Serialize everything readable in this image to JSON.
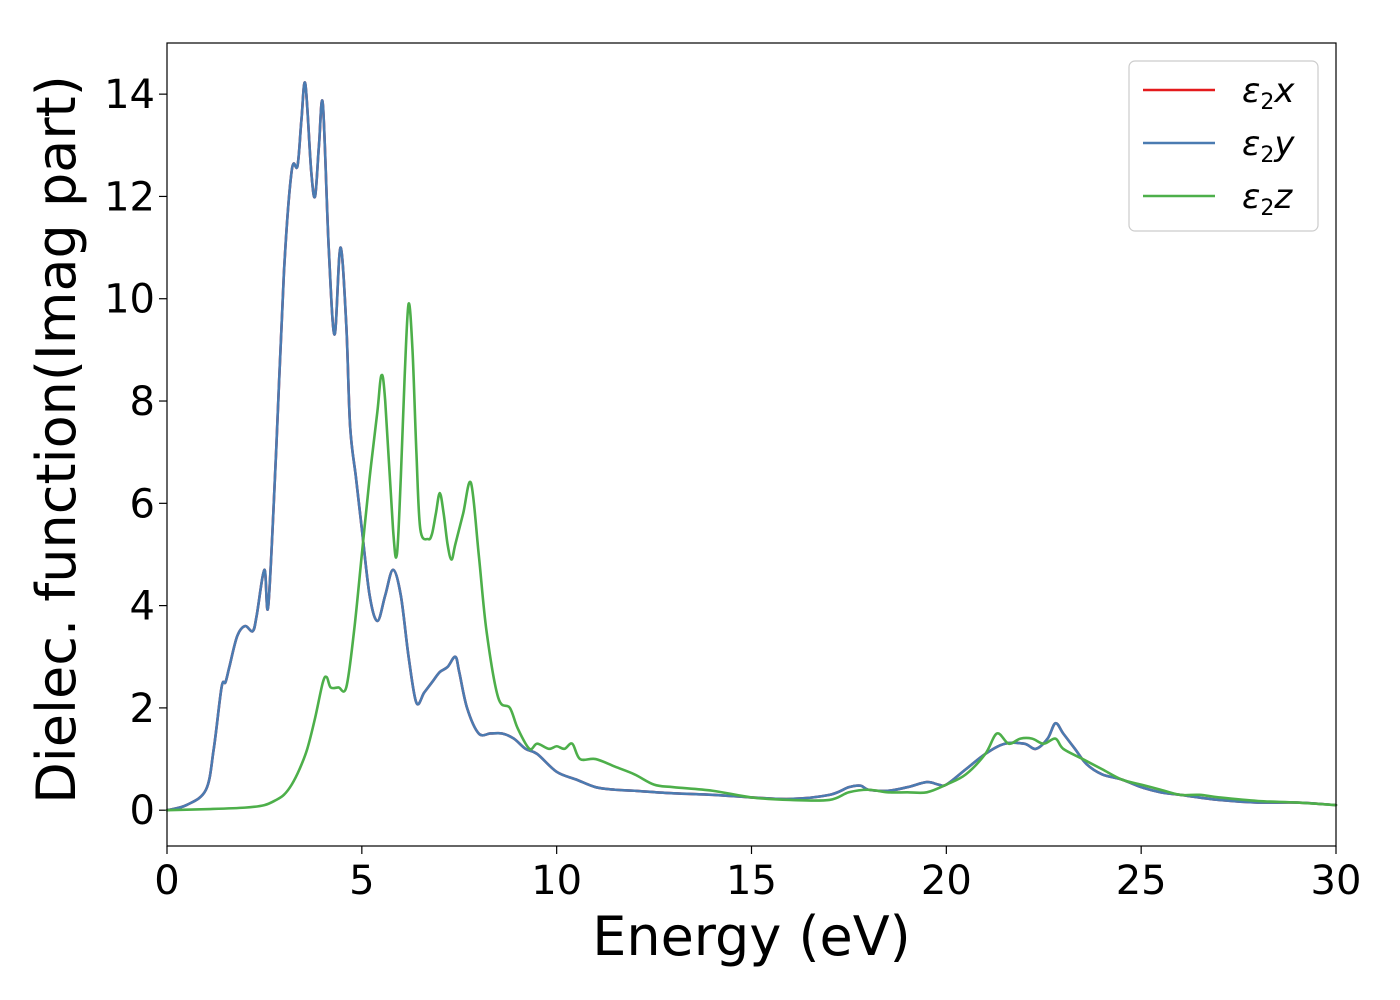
{
  "chart_data": {
    "type": "line",
    "title": "",
    "xlabel": "Energy (eV)",
    "ylabel": "Dielec. function(Imag part)",
    "xlim": [
      0,
      30
    ],
    "ylim": [
      -0.7,
      15
    ],
    "xticks": [
      0,
      5,
      10,
      15,
      20,
      25,
      30
    ],
    "yticks": [
      0,
      2,
      4,
      6,
      8,
      10,
      12,
      14
    ],
    "grid": false,
    "legend_position": "top-right",
    "series": [
      {
        "name": "ε₂x",
        "legend_sub": "2",
        "legend_var": "x",
        "color": "#e41a1c",
        "x": [
          0,
          0.5,
          1.0,
          1.2,
          1.4,
          1.5,
          1.6,
          1.8,
          2.0,
          2.2,
          2.3,
          2.5,
          2.6,
          2.8,
          3.0,
          3.2,
          3.35,
          3.45,
          3.55,
          3.7,
          3.8,
          3.9,
          4.0,
          4.15,
          4.3,
          4.45,
          4.6,
          4.7,
          4.85,
          5.0,
          5.2,
          5.4,
          5.6,
          5.8,
          6.0,
          6.2,
          6.4,
          6.6,
          6.8,
          7.0,
          7.2,
          7.4,
          7.5,
          7.7,
          8.0,
          8.3,
          8.6,
          8.9,
          9.2,
          9.5,
          10.0,
          10.5,
          11.0,
          11.5,
          12.0,
          13.0,
          14.0,
          15.0,
          16.0,
          17.0,
          17.5,
          17.8,
          18.0,
          18.5,
          19.0,
          19.5,
          19.8,
          20.0,
          20.5,
          21.0,
          21.5,
          22.0,
          22.3,
          22.6,
          22.8,
          23.0,
          23.3,
          23.6,
          24.0,
          24.5,
          25.0,
          25.5,
          26.0,
          27.0,
          28.0,
          29.0,
          30.0
        ],
        "values": [
          0,
          0.1,
          0.4,
          1.2,
          2.4,
          2.5,
          2.8,
          3.4,
          3.6,
          3.5,
          3.8,
          4.7,
          4.0,
          7.0,
          10.5,
          12.5,
          12.6,
          13.5,
          14.2,
          12.5,
          12.0,
          13.0,
          13.8,
          11.0,
          9.3,
          11.0,
          9.5,
          7.5,
          6.5,
          5.5,
          4.2,
          3.7,
          4.2,
          4.7,
          4.2,
          3.0,
          2.1,
          2.3,
          2.5,
          2.7,
          2.8,
          3.0,
          2.7,
          2.0,
          1.5,
          1.5,
          1.5,
          1.4,
          1.2,
          1.1,
          0.75,
          0.6,
          0.45,
          0.4,
          0.38,
          0.33,
          0.3,
          0.25,
          0.22,
          0.3,
          0.45,
          0.48,
          0.4,
          0.38,
          0.45,
          0.55,
          0.5,
          0.5,
          0.8,
          1.1,
          1.3,
          1.3,
          1.2,
          1.4,
          1.7,
          1.5,
          1.2,
          0.9,
          0.7,
          0.6,
          0.45,
          0.35,
          0.3,
          0.2,
          0.15,
          0.15,
          0.1
        ]
      },
      {
        "name": "ε₂y",
        "legend_sub": "2",
        "legend_var": "y",
        "color": "#4a7bb1",
        "x": [
          0,
          0.5,
          1.0,
          1.2,
          1.4,
          1.5,
          1.6,
          1.8,
          2.0,
          2.2,
          2.3,
          2.5,
          2.6,
          2.8,
          3.0,
          3.2,
          3.35,
          3.45,
          3.55,
          3.7,
          3.8,
          3.9,
          4.0,
          4.15,
          4.3,
          4.45,
          4.6,
          4.7,
          4.85,
          5.0,
          5.2,
          5.4,
          5.6,
          5.8,
          6.0,
          6.2,
          6.4,
          6.6,
          6.8,
          7.0,
          7.2,
          7.4,
          7.5,
          7.7,
          8.0,
          8.3,
          8.6,
          8.9,
          9.2,
          9.5,
          10.0,
          10.5,
          11.0,
          11.5,
          12.0,
          13.0,
          14.0,
          15.0,
          16.0,
          17.0,
          17.5,
          17.8,
          18.0,
          18.5,
          19.0,
          19.5,
          19.8,
          20.0,
          20.5,
          21.0,
          21.5,
          22.0,
          22.3,
          22.6,
          22.8,
          23.0,
          23.3,
          23.6,
          24.0,
          24.5,
          25.0,
          25.5,
          26.0,
          27.0,
          28.0,
          29.0,
          30.0
        ],
        "values": [
          0,
          0.1,
          0.4,
          1.2,
          2.4,
          2.5,
          2.8,
          3.4,
          3.6,
          3.5,
          3.8,
          4.7,
          4.0,
          7.0,
          10.5,
          12.5,
          12.6,
          13.5,
          14.2,
          12.5,
          12.0,
          13.0,
          13.8,
          11.0,
          9.3,
          11.0,
          9.5,
          7.5,
          6.5,
          5.5,
          4.2,
          3.7,
          4.2,
          4.7,
          4.2,
          3.0,
          2.1,
          2.3,
          2.5,
          2.7,
          2.8,
          3.0,
          2.7,
          2.0,
          1.5,
          1.5,
          1.5,
          1.4,
          1.2,
          1.1,
          0.75,
          0.6,
          0.45,
          0.4,
          0.38,
          0.33,
          0.3,
          0.25,
          0.22,
          0.3,
          0.45,
          0.48,
          0.4,
          0.38,
          0.45,
          0.55,
          0.5,
          0.5,
          0.8,
          1.1,
          1.3,
          1.3,
          1.2,
          1.4,
          1.7,
          1.5,
          1.2,
          0.9,
          0.7,
          0.6,
          0.45,
          0.35,
          0.3,
          0.2,
          0.15,
          0.15,
          0.1
        ]
      },
      {
        "name": "ε₂z",
        "legend_sub": "2",
        "legend_var": "z",
        "color": "#4daf4a",
        "x": [
          0,
          1.0,
          2.0,
          2.5,
          2.8,
          3.0,
          3.2,
          3.4,
          3.6,
          3.8,
          4.0,
          4.1,
          4.2,
          4.4,
          4.6,
          4.8,
          5.0,
          5.2,
          5.4,
          5.5,
          5.6,
          5.8,
          5.9,
          6.0,
          6.1,
          6.2,
          6.3,
          6.4,
          6.5,
          6.7,
          6.8,
          6.9,
          7.0,
          7.1,
          7.2,
          7.3,
          7.4,
          7.6,
          7.8,
          8.0,
          8.2,
          8.5,
          8.8,
          9.0,
          9.3,
          9.5,
          9.8,
          10.0,
          10.2,
          10.4,
          10.6,
          11.0,
          11.5,
          12.0,
          12.5,
          13.0,
          14.0,
          15.0,
          16.0,
          17.0,
          17.5,
          18.0,
          18.5,
          19.0,
          19.5,
          20.0,
          20.5,
          21.0,
          21.3,
          21.6,
          21.9,
          22.2,
          22.5,
          22.8,
          23.0,
          23.5,
          24.0,
          24.5,
          25.0,
          25.5,
          26.0,
          26.5,
          27.0,
          28.0,
          29.0,
          30.0
        ],
        "values": [
          0,
          0.02,
          0.05,
          0.1,
          0.2,
          0.3,
          0.5,
          0.8,
          1.2,
          1.8,
          2.5,
          2.6,
          2.4,
          2.4,
          2.4,
          3.5,
          5.0,
          6.5,
          7.8,
          8.5,
          8.0,
          5.5,
          5.0,
          6.5,
          8.5,
          9.9,
          9.0,
          7.0,
          5.5,
          5.3,
          5.4,
          5.8,
          6.2,
          5.8,
          5.2,
          4.9,
          5.2,
          5.8,
          6.4,
          5.0,
          3.5,
          2.2,
          2.0,
          1.6,
          1.2,
          1.3,
          1.2,
          1.25,
          1.2,
          1.3,
          1.0,
          1.0,
          0.85,
          0.7,
          0.5,
          0.45,
          0.38,
          0.25,
          0.2,
          0.2,
          0.35,
          0.4,
          0.35,
          0.35,
          0.35,
          0.5,
          0.7,
          1.1,
          1.5,
          1.3,
          1.4,
          1.4,
          1.3,
          1.4,
          1.2,
          1.0,
          0.8,
          0.6,
          0.5,
          0.4,
          0.3,
          0.3,
          0.25,
          0.18,
          0.15,
          0.1
        ]
      }
    ]
  }
}
